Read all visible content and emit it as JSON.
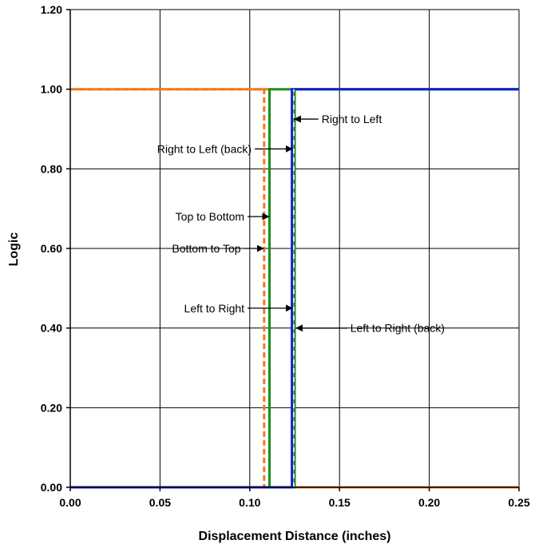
{
  "chart_data": {
    "type": "line",
    "title": "",
    "xlabel": "Displacement Distance (inches)",
    "ylabel": "Logic",
    "xlim": [
      0,
      0.25
    ],
    "ylim": [
      0,
      1.2
    ],
    "x_ticks": [
      "0.00",
      "0.05",
      "0.10",
      "0.15",
      "0.20",
      "0.25"
    ],
    "y_ticks": [
      "0.00",
      "0.20",
      "0.40",
      "0.60",
      "0.80",
      "1.00",
      "1.20"
    ],
    "grid": true,
    "legend": "none",
    "series": [
      {
        "color": "#F07B20",
        "dashed": true,
        "points": [
          [
            0,
            1
          ],
          [
            0.108,
            1
          ],
          [
            0.108,
            0
          ],
          [
            0.25,
            0
          ]
        ]
      },
      {
        "color": "#F07B20",
        "dashed": false,
        "points": [
          [
            0,
            1
          ],
          [
            0.111,
            1
          ],
          [
            0.111,
            0
          ],
          [
            0.25,
            0
          ]
        ]
      },
      {
        "color": "#1A8F1A",
        "dashed": false,
        "points": [
          [
            0,
            0
          ],
          [
            0.125,
            0
          ],
          [
            0.125,
            1
          ],
          [
            0.25,
            1
          ]
        ]
      },
      {
        "color": "#1A8F1A",
        "dashed": false,
        "points": [
          [
            0,
            0
          ],
          [
            0.111,
            0
          ],
          [
            0.111,
            1
          ],
          [
            0.25,
            1
          ]
        ]
      },
      {
        "color": "#1C1CDC",
        "dashed": false,
        "points": [
          [
            0,
            0
          ],
          [
            0.1235,
            0
          ],
          [
            0.1235,
            1
          ],
          [
            0.25,
            1
          ]
        ]
      },
      {
        "color": "#FFFFFF",
        "dashed": true,
        "points": [
          [
            0.1245,
            0
          ],
          [
            0.1245,
            1
          ]
        ]
      }
    ],
    "annotations": [
      {
        "text": "Right to Left",
        "anchor": "start",
        "tx": 0.14,
        "ty": 0.925,
        "ax": 0.1245,
        "ay": 0.925
      },
      {
        "text": "Right to Left (back)",
        "anchor": "end",
        "tx": 0.101,
        "ty": 0.85,
        "ax": 0.124,
        "ay": 0.85
      },
      {
        "text": "Top to Bottom",
        "anchor": "end",
        "tx": 0.097,
        "ty": 0.68,
        "ax": 0.111,
        "ay": 0.68
      },
      {
        "text": "Bottom to Top",
        "anchor": "end",
        "tx": 0.095,
        "ty": 0.6,
        "ax": 0.108,
        "ay": 0.6
      },
      {
        "text": "Left to Right",
        "anchor": "end",
        "tx": 0.097,
        "ty": 0.45,
        "ax": 0.124,
        "ay": 0.45
      },
      {
        "text": "Left to Right (back)",
        "anchor": "start",
        "tx": 0.156,
        "ty": 0.4,
        "ax": 0.1255,
        "ay": 0.4
      }
    ]
  }
}
